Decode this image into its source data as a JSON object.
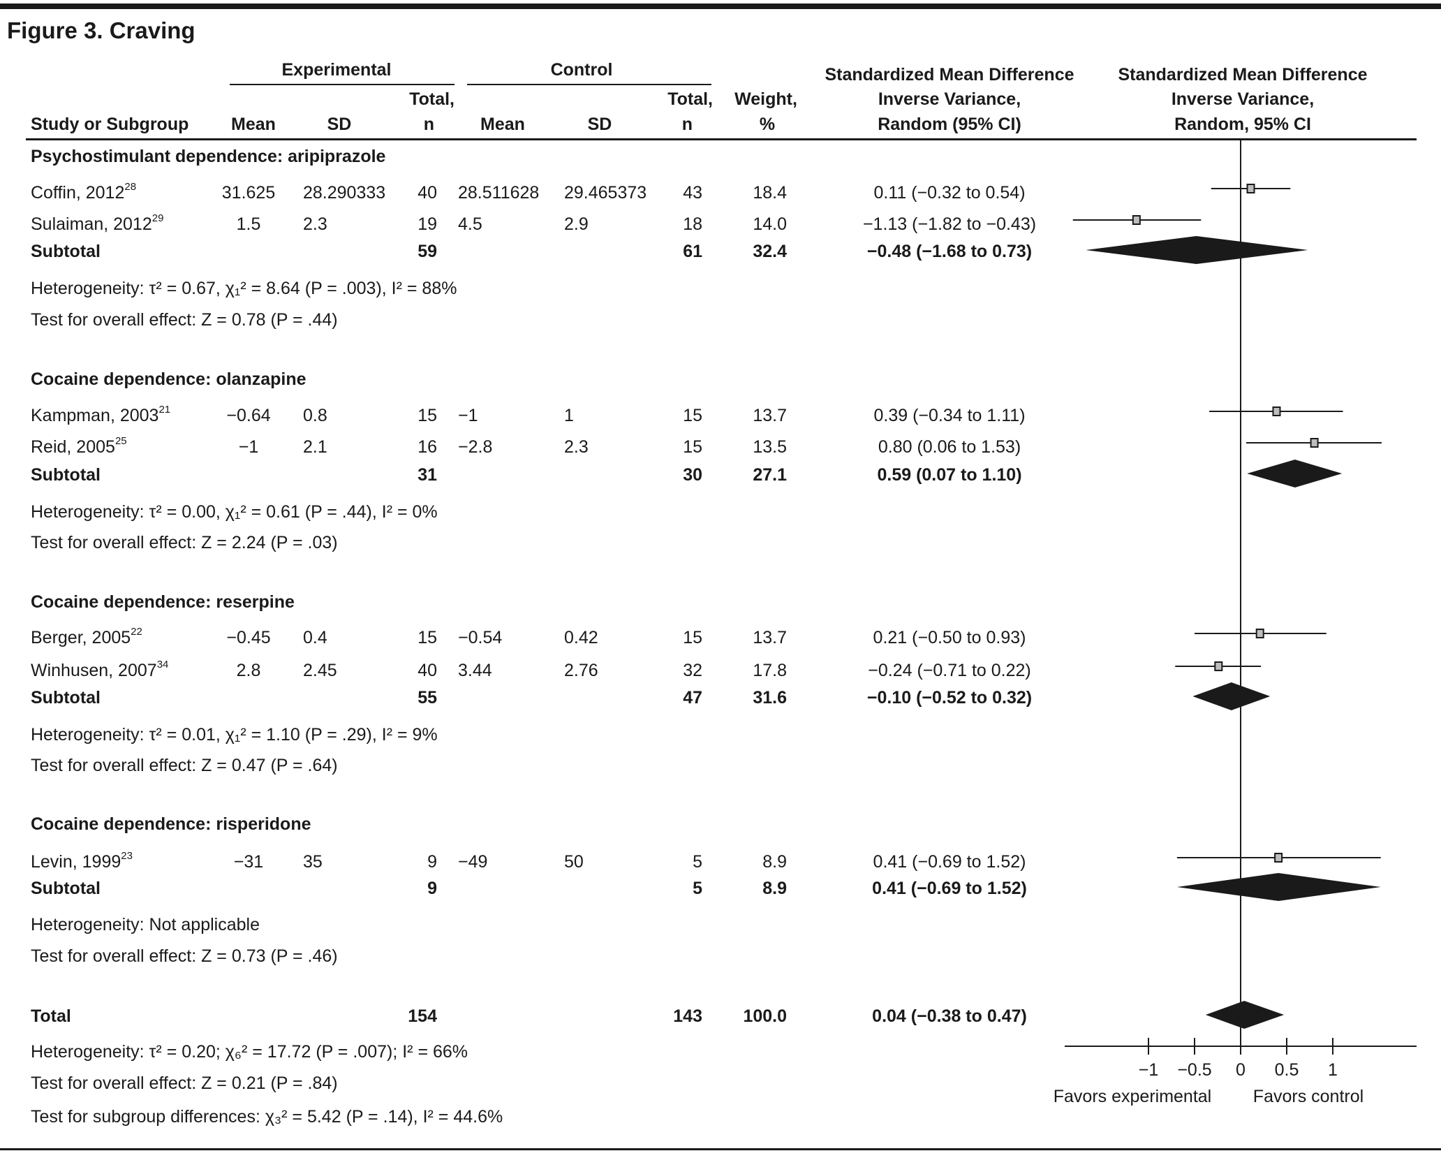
{
  "title": "Figure 3. Craving",
  "header": {
    "experimental": "Experimental",
    "control": "Control",
    "study": "Study or Subgroup",
    "mean": "Mean",
    "sd": "SD",
    "total_top": "Total,",
    "total_bottom": "n",
    "weight_top": "Weight,",
    "weight_bottom": "%",
    "smd_col": [
      "Standardized Mean Difference",
      "Inverse Variance,",
      "Random (95% CI)"
    ],
    "plot_col": [
      "Standardized Mean Difference",
      "Inverse Variance,",
      "Random, 95% CI"
    ]
  },
  "chart_data": {
    "type": "forest",
    "xlim": [
      -2,
      2
    ],
    "ticks": [
      "−1",
      "−0.5",
      "0",
      "0.5",
      "1"
    ],
    "tick_values": [
      -1,
      -0.5,
      0,
      0.5,
      1
    ],
    "left_label": "Favors experimental",
    "right_label": "Favors control",
    "groups": [
      {
        "title": "Psychostimulant dependence: aripiprazole",
        "studies": [
          {
            "name": "Coffin, 2012",
            "ref": "28",
            "exp_mean": "31.625",
            "exp_sd": "28.290333",
            "exp_n": "40",
            "ctl_mean": "28.511628",
            "ctl_sd": "29.465373",
            "ctl_n": "43",
            "weight": "18.4",
            "smd_text": "0.11 (−0.32 to 0.54)",
            "smd": 0.11,
            "ci": [
              -0.32,
              0.54
            ]
          },
          {
            "name": "Sulaiman, 2012",
            "ref": "29",
            "exp_mean": "1.5",
            "exp_sd": "2.3",
            "exp_n": "19",
            "ctl_mean": "4.5",
            "ctl_sd": "2.9",
            "ctl_n": "18",
            "weight": "14.0",
            "smd_text": "−1.13 (−1.82 to −0.43)",
            "smd": -1.13,
            "ci": [
              -1.82,
              -0.43
            ]
          }
        ],
        "subtotal": {
          "label": "Subtotal",
          "exp_n": "59",
          "ctl_n": "61",
          "weight": "32.4",
          "smd_text": "−0.48 (−1.68 to 0.73)",
          "smd": -0.48,
          "ci": [
            -1.68,
            0.73
          ]
        },
        "heterogeneity": "Heterogeneity: τ² = 0.67, χ₁² = 8.64 (P = .003), I² = 88%",
        "overall": "Test for overall effect: Z = 0.78 (P = .44)"
      },
      {
        "title": "Cocaine dependence: olanzapine",
        "studies": [
          {
            "name": "Kampman, 2003",
            "ref": "21",
            "exp_mean": "−0.64",
            "exp_sd": "0.8",
            "exp_n": "15",
            "ctl_mean": "−1",
            "ctl_sd": "1",
            "ctl_n": "15",
            "weight": "13.7",
            "smd_text": "0.39 (−0.34 to 1.11)",
            "smd": 0.39,
            "ci": [
              -0.34,
              1.11
            ]
          },
          {
            "name": "Reid, 2005",
            "ref": "25",
            "exp_mean": "−1",
            "exp_sd": "2.1",
            "exp_n": "16",
            "ctl_mean": "−2.8",
            "ctl_sd": "2.3",
            "ctl_n": "15",
            "weight": "13.5",
            "smd_text": "0.80 (0.06 to 1.53)",
            "smd": 0.8,
            "ci": [
              0.06,
              1.53
            ]
          }
        ],
        "subtotal": {
          "label": "Subtotal",
          "exp_n": "31",
          "ctl_n": "30",
          "weight": "27.1",
          "smd_text": "0.59 (0.07 to 1.10)",
          "smd": 0.59,
          "ci": [
            0.07,
            1.1
          ]
        },
        "heterogeneity": "Heterogeneity: τ² = 0.00, χ₁² = 0.61 (P = .44), I² = 0%",
        "overall": "Test for overall effect: Z = 2.24 (P = .03)"
      },
      {
        "title": "Cocaine dependence: reserpine",
        "studies": [
          {
            "name": "Berger, 2005",
            "ref": "22",
            "exp_mean": "−0.45",
            "exp_sd": "0.4",
            "exp_n": "15",
            "ctl_mean": "−0.54",
            "ctl_sd": "0.42",
            "ctl_n": "15",
            "weight": "13.7",
            "smd_text": "0.21 (−0.50 to 0.93)",
            "smd": 0.21,
            "ci": [
              -0.5,
              0.93
            ]
          },
          {
            "name": "Winhusen, 2007",
            "ref": "34",
            "exp_mean": "2.8",
            "exp_sd": "2.45",
            "exp_n": "40",
            "ctl_mean": "3.44",
            "ctl_sd": "2.76",
            "ctl_n": "32",
            "weight": "17.8",
            "smd_text": "−0.24 (−0.71 to 0.22)",
            "smd": -0.24,
            "ci": [
              -0.71,
              0.22
            ]
          }
        ],
        "subtotal": {
          "label": "Subtotal",
          "exp_n": "55",
          "ctl_n": "47",
          "weight": "31.6",
          "smd_text": "−0.10 (−0.52 to 0.32)",
          "smd": -0.1,
          "ci": [
            -0.52,
            0.32
          ]
        },
        "heterogeneity": "Heterogeneity: τ² = 0.01, χ₁² = 1.10 (P = .29), I² = 9%",
        "overall": "Test for overall effect: Z = 0.47 (P = .64)"
      },
      {
        "title": "Cocaine dependence: risperidone",
        "studies": [
          {
            "name": "Levin, 1999",
            "ref": "23",
            "exp_mean": "−31",
            "exp_sd": "35",
            "exp_n": "9",
            "ctl_mean": "−49",
            "ctl_sd": "50",
            "ctl_n": "5",
            "weight": "8.9",
            "smd_text": "0.41 (−0.69 to 1.52)",
            "smd": 0.41,
            "ci": [
              -0.69,
              1.52
            ]
          }
        ],
        "subtotal": {
          "label": "Subtotal",
          "exp_n": "9",
          "ctl_n": "5",
          "weight": "8.9",
          "smd_text": "0.41 (−0.69 to 1.52)",
          "smd": 0.41,
          "ci": [
            -0.69,
            1.52
          ]
        },
        "heterogeneity": "Heterogeneity: Not applicable",
        "overall": "Test for overall effect: Z = 0.73 (P = .46)"
      }
    ],
    "total": {
      "label": "Total",
      "exp_n": "154",
      "ctl_n": "143",
      "weight": "100.0",
      "smd_text": "0.04 (−0.38 to 0.47)",
      "smd": 0.04,
      "ci": [
        -0.38,
        0.47
      ]
    },
    "total_heterogeneity": "Heterogeneity: τ² = 0.20; χ₆² = 17.72 (P = .007); I² = 66%",
    "total_overall": "Test for overall effect: Z = 0.21 (P = .84)",
    "subgroup_differences": "Test for subgroup differences: χ₃² = 5.42 (P = .14), I² = 44.6%"
  }
}
